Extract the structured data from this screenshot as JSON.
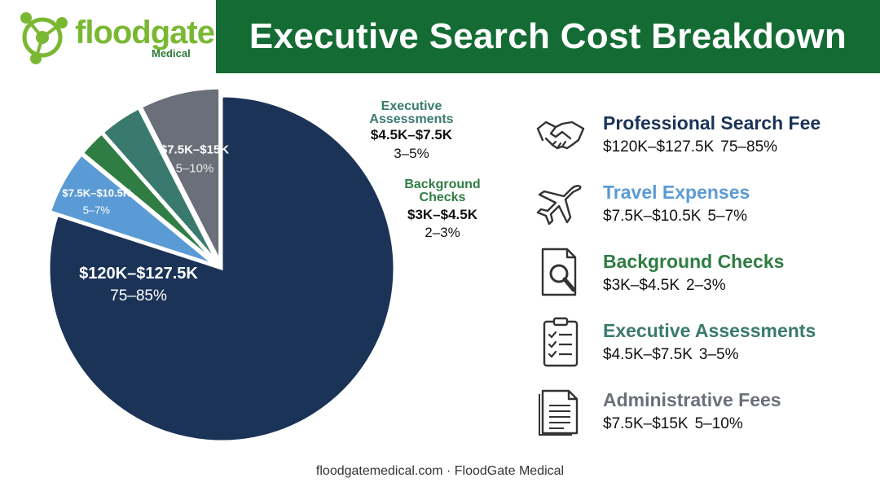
{
  "brand": {
    "name": "floodgate",
    "sub": "Medical"
  },
  "title": "Executive Search Cost Breakdown",
  "chart_data": {
    "type": "pie",
    "title": "Executive Search Cost Breakdown",
    "slices": [
      {
        "name": "Professional Search Fee",
        "range": "$120K–$127.5K",
        "pct": "75–85%",
        "value": 80,
        "color": "#1b3357"
      },
      {
        "name": "Travel Expenses",
        "range": "$7.5K–$10.5K",
        "pct": "5–7%",
        "value": 6,
        "color": "#5b9bd5"
      },
      {
        "name": "Background Checks",
        "range": "$3K–$4.5K",
        "pct": "2–3%",
        "value": 2.5,
        "color": "#2f7d43"
      },
      {
        "name": "Executive Assessments",
        "range": "$4.5K–$7.5K",
        "pct": "3–5%",
        "value": 4,
        "color": "#3a7a6e"
      },
      {
        "name": "Administrative Fees",
        "range": "$7.5K–$15K",
        "pct": "5–10%",
        "value": 7.5,
        "color": "#6b6f7a"
      }
    ],
    "outside_labels": {
      "assessments": {
        "name_line1": "Executive",
        "name_line2": "Assessments",
        "range": "$4.5K–$7.5K",
        "pct": "3–5%"
      },
      "background": {
        "name_line1": "Background",
        "name_line2": "Checks",
        "range": "$3K–$4.5K",
        "pct": "2–3%"
      }
    }
  },
  "legend": [
    {
      "name": "Professional Search Fee",
      "range": "$120K–$127.5K",
      "pct": "75–85%",
      "color": "#1b3357",
      "icon": "handshake-icon"
    },
    {
      "name": "Travel Expenses",
      "range": "$7.5K–$10.5K",
      "pct": "5–7%",
      "color": "#5b9bd5",
      "icon": "airplane-icon"
    },
    {
      "name": "Background Checks",
      "range": "$3K–$4.5K",
      "pct": "2–3%",
      "color": "#2f7d43",
      "icon": "document-search-icon"
    },
    {
      "name": "Executive Assessments",
      "range": "$4.5K–$7.5K",
      "pct": "3–5%",
      "color": "#3a7a6e",
      "icon": "clipboard-checklist-icon"
    },
    {
      "name": "Administrative Fees",
      "range": "$7.5K–$15K",
      "pct": "5–10%",
      "color": "#6b6f7a",
      "icon": "document-lines-icon"
    }
  ],
  "footer": "floodgatemedical.com · FloodGate Medical"
}
